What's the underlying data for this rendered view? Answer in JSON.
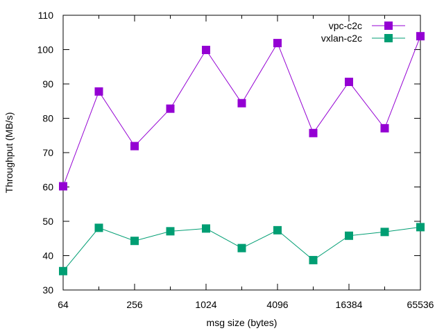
{
  "chart_data": {
    "type": "line",
    "title": "",
    "xlabel": "msg size (bytes)",
    "ylabel": "Throughput (MB/s)",
    "x_scale": "log2",
    "x": [
      64,
      128,
      256,
      512,
      1024,
      2048,
      4096,
      8192,
      16384,
      32768,
      65536
    ],
    "xticks": [
      "64",
      "256",
      "1024",
      "4096",
      "16384",
      "65536"
    ],
    "xtick_values": [
      64,
      256,
      1024,
      4096,
      16384,
      65536
    ],
    "xlim": [
      64,
      65536
    ],
    "ylim": [
      30,
      110
    ],
    "yticks": [
      "30",
      "40",
      "50",
      "60",
      "70",
      "80",
      "90",
      "100",
      "110"
    ],
    "ytick_values": [
      30,
      40,
      50,
      60,
      70,
      80,
      90,
      100,
      110
    ],
    "grid": false,
    "legend_position": "top-right",
    "series": [
      {
        "name": "vpc-c2c",
        "color": "#9400d3",
        "marker": "square",
        "values": [
          60.2,
          87.8,
          71.9,
          82.8,
          99.9,
          84.4,
          101.9,
          75.7,
          90.6,
          77.1,
          103.9
        ]
      },
      {
        "name": "vxlan-c2c",
        "color": "#009e73",
        "marker": "square",
        "values": [
          35.5,
          48.1,
          44.3,
          47.1,
          47.9,
          42.2,
          47.4,
          38.7,
          45.8,
          46.9,
          48.3
        ]
      }
    ]
  }
}
